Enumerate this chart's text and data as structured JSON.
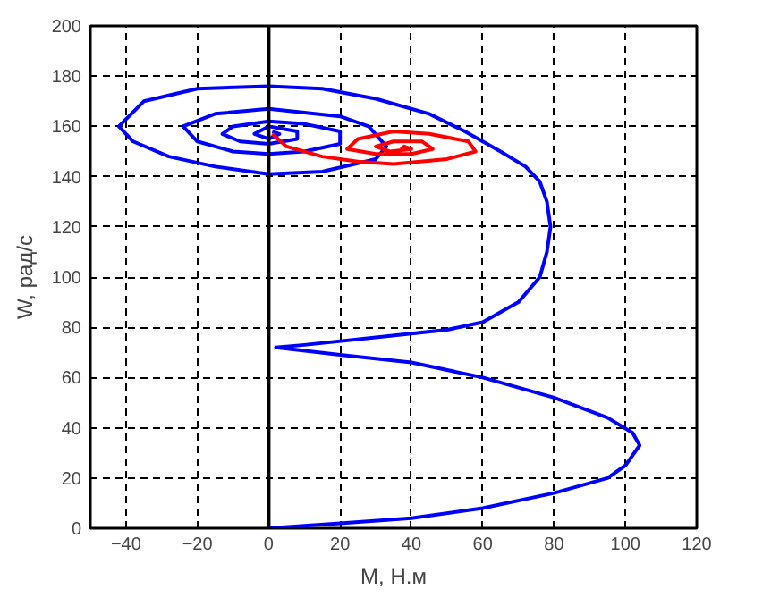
{
  "chart_data": {
    "type": "line",
    "xlabel": "M, Н.м",
    "ylabel": "W, рад/с",
    "xlim": [
      -50,
      120
    ],
    "ylim": [
      0,
      200
    ],
    "xticks": [
      -40,
      -20,
      0,
      20,
      40,
      60,
      80,
      100,
      120
    ],
    "yticks": [
      0,
      20,
      40,
      60,
      80,
      100,
      120,
      140,
      160,
      180,
      200
    ],
    "grid": true,
    "line_style": "solid",
    "series": [
      {
        "color": "#0000ff",
        "x": [
          0,
          20,
          40,
          60,
          80,
          95,
          100,
          104,
          102,
          95,
          80,
          60,
          40,
          20,
          2,
          10,
          30,
          50,
          60,
          70,
          76,
          78,
          79,
          78,
          76,
          72,
          65,
          55,
          45,
          30,
          15,
          0,
          -20,
          -35,
          -42,
          -38,
          -28,
          -15,
          0,
          15,
          30,
          33,
          28,
          20,
          0,
          -15,
          -24,
          -20,
          -10,
          0,
          10,
          20,
          20,
          10,
          0,
          -10,
          -13,
          -8,
          0,
          8,
          8,
          0,
          -4,
          0,
          3,
          1
        ],
        "values": [
          0,
          2,
          4,
          8,
          14,
          20,
          25,
          33,
          38,
          44,
          52,
          60,
          66,
          69,
          72,
          73,
          76,
          79,
          82,
          90,
          100,
          110,
          120,
          130,
          138,
          144,
          150,
          158,
          165,
          171,
          175,
          176,
          175,
          170,
          160,
          154,
          148,
          144,
          141,
          142,
          147,
          152,
          160,
          164,
          167,
          165,
          160,
          154,
          150,
          149,
          150,
          153,
          158,
          161,
          162,
          160,
          157,
          154,
          153,
          155,
          158,
          160,
          157,
          155,
          157,
          158
        ]
      },
      {
        "color": "#ff0000",
        "x": [
          1,
          5,
          15,
          25,
          35,
          50,
          58,
          56,
          45,
          35,
          25,
          22,
          30,
          40,
          46,
          43,
          35,
          30,
          34,
          40,
          38,
          37
        ],
        "values": [
          157,
          152,
          148,
          146,
          145,
          147,
          150,
          154,
          157,
          158,
          155,
          151,
          149,
          149,
          151,
          154,
          154,
          152,
          150,
          151,
          152,
          151
        ]
      }
    ],
    "ref_lines": [
      {
        "axis": "x",
        "value": 0,
        "color": "#000000"
      }
    ]
  }
}
